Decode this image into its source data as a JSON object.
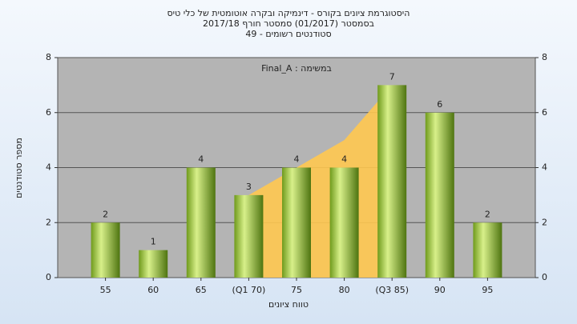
{
  "chart_data": {
    "type": "bar",
    "title": [
      "היסטוגרמת ציונים בקורס - דינמיקה ובקרה אוטומטית של כלי טיס",
      "בסמסטר  (01/2017)  סמסטר חורף  2017/18",
      "סטודנטים רשומים - 49"
    ],
    "annotation": "Final_A : במשימה",
    "y_label": "מספר סטודנטים",
    "x_label": "טווח ציונים",
    "categories": [
      "55",
      "60",
      "65",
      "(Q1 70)",
      "75",
      "80",
      "(Q3 85)",
      "90",
      "95"
    ],
    "values": [
      2,
      1,
      4,
      3,
      4,
      4,
      7,
      6,
      2
    ],
    "color": "#9ccc3c",
    "area": {
      "color": "#ffc850",
      "values": [
        null,
        null,
        null,
        3,
        4,
        5,
        7,
        null,
        null
      ]
    },
    "ylim": [
      0,
      8
    ],
    "yticks": [
      0,
      2,
      4,
      6,
      8
    ],
    "grid": true
  }
}
